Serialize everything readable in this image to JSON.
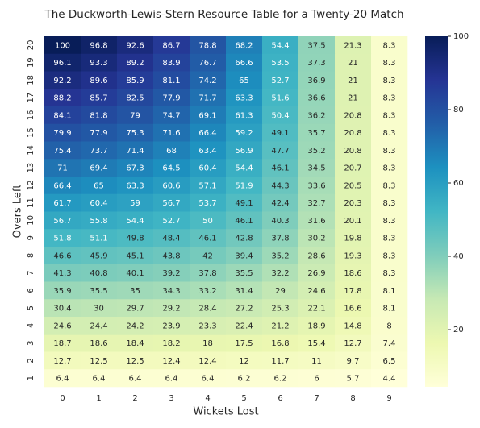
{
  "chart_data": {
    "type": "heatmap",
    "title": "The Duckworth-Lewis-Stern Resource Table for a Twenty-20 Match",
    "xlabel": "Wickets Lost",
    "ylabel": "Overs Left",
    "x_categories": [
      0,
      1,
      2,
      3,
      4,
      5,
      6,
      7,
      8,
      9
    ],
    "y_categories": [
      20,
      19,
      18,
      17,
      16,
      15,
      14,
      13,
      12,
      11,
      10,
      9,
      8,
      7,
      6,
      5,
      4,
      3,
      2,
      1
    ],
    "values": [
      [
        100,
        96.8,
        92.6,
        86.7,
        78.8,
        68.2,
        54.4,
        37.5,
        21.3,
        8.3
      ],
      [
        96.1,
        93.3,
        89.2,
        83.9,
        76.7,
        66.6,
        53.5,
        37.3,
        21,
        8.3
      ],
      [
        92.2,
        89.6,
        85.9,
        81.1,
        74.2,
        65,
        52.7,
        36.9,
        21,
        8.3
      ],
      [
        88.2,
        85.7,
        82.5,
        77.9,
        71.7,
        63.3,
        51.6,
        36.6,
        21,
        8.3
      ],
      [
        84.1,
        81.8,
        79,
        74.7,
        69.1,
        61.3,
        50.4,
        36.2,
        20.8,
        8.3
      ],
      [
        79.9,
        77.9,
        75.3,
        71.6,
        66.4,
        59.2,
        49.1,
        35.7,
        20.8,
        8.3
      ],
      [
        75.4,
        73.7,
        71.4,
        68,
        63.4,
        56.9,
        47.7,
        35.2,
        20.8,
        8.3
      ],
      [
        71,
        69.4,
        67.3,
        64.5,
        60.4,
        54.4,
        46.1,
        34.5,
        20.7,
        8.3
      ],
      [
        66.4,
        65,
        63.3,
        60.6,
        57.1,
        51.9,
        44.3,
        33.6,
        20.5,
        8.3
      ],
      [
        61.7,
        60.4,
        59,
        56.7,
        53.7,
        49.1,
        42.4,
        32.7,
        20.3,
        8.3
      ],
      [
        56.7,
        55.8,
        54.4,
        52.7,
        50,
        46.1,
        40.3,
        31.6,
        20.1,
        8.3
      ],
      [
        51.8,
        51.1,
        49.8,
        48.4,
        46.1,
        42.8,
        37.8,
        30.2,
        19.8,
        8.3
      ],
      [
        46.6,
        45.9,
        45.1,
        43.8,
        42,
        39.4,
        35.2,
        28.6,
        19.3,
        8.3
      ],
      [
        41.3,
        40.8,
        40.1,
        39.2,
        37.8,
        35.5,
        32.2,
        26.9,
        18.6,
        8.3
      ],
      [
        35.9,
        35.5,
        35,
        34.3,
        33.2,
        31.4,
        29,
        24.6,
        17.8,
        8.1
      ],
      [
        30.4,
        30,
        29.7,
        29.2,
        28.4,
        27.2,
        25.3,
        22.1,
        16.6,
        8.1
      ],
      [
        24.6,
        24.4,
        24.2,
        23.9,
        23.3,
        22.4,
        21.2,
        18.9,
        14.8,
        8
      ],
      [
        18.7,
        18.6,
        18.4,
        18.2,
        18,
        17.5,
        16.8,
        15.4,
        12.7,
        7.4
      ],
      [
        12.7,
        12.5,
        12.5,
        12.4,
        12.4,
        12,
        11.7,
        11,
        9.7,
        6.5
      ],
      [
        6.4,
        6.4,
        6.4,
        6.4,
        6.4,
        6.2,
        6.2,
        6,
        5.7,
        4.4
      ]
    ],
    "colorscale": [
      "#ffffd9",
      "#edf8b1",
      "#c7e9b4",
      "#7fcdbb",
      "#41b6c4",
      "#1d91c0",
      "#225ea8",
      "#253494",
      "#081d58"
    ],
    "clim": [
      4.4,
      100
    ],
    "cticks": [
      20,
      40,
      60,
      80,
      100
    ]
  }
}
